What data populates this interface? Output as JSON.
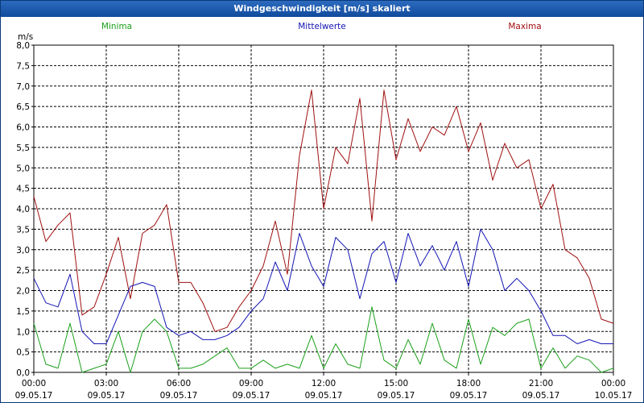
{
  "window": {
    "title": "Windgeschwindigkeit [m/s] skaliert"
  },
  "legend": [
    {
      "label": "Minima",
      "color": "#1aa01a"
    },
    {
      "label": "Mittelwerte",
      "color": "#1414b4"
    },
    {
      "label": "Maxima",
      "color": "#a01010"
    }
  ],
  "chart_data": {
    "type": "line",
    "title": "Windgeschwindigkeit [m/s] skaliert",
    "ylabel": "m/s",
    "ylim": [
      0,
      8
    ],
    "xlim": [
      "09.05.17 00:00",
      "10.05.17 00:00"
    ],
    "yticks": [
      "0,0",
      "0,5",
      "1,0",
      "1,5",
      "2,0",
      "2,5",
      "3,0",
      "3,5",
      "4,0",
      "4,5",
      "5,0",
      "5,5",
      "6,0",
      "6,5",
      "7,0",
      "7,5",
      "8,0"
    ],
    "xticks": [
      {
        "time": "00:00",
        "date": "09.05.17"
      },
      {
        "time": "03:00",
        "date": "09.05.17"
      },
      {
        "time": "06:00",
        "date": "09.05.17"
      },
      {
        "time": "09:00",
        "date": "09.05.17"
      },
      {
        "time": "12:00",
        "date": "09.05.17"
      },
      {
        "time": "15:00",
        "date": "09.05.17"
      },
      {
        "time": "18:00",
        "date": "09.05.17"
      },
      {
        "time": "21:00",
        "date": "09.05.17"
      },
      {
        "time": "00:00",
        "date": "10.05.17"
      }
    ],
    "grid": true,
    "legend_position": "top",
    "x_hours": [
      0,
      0.5,
      1,
      1.5,
      2,
      2.5,
      3,
      3.5,
      4,
      4.5,
      5,
      5.5,
      6,
      6.5,
      7,
      7.5,
      8,
      8.5,
      9,
      9.5,
      10,
      10.5,
      11,
      11.5,
      12,
      12.5,
      13,
      13.5,
      14,
      14.5,
      15,
      15.5,
      16,
      16.5,
      17,
      17.5,
      18,
      18.5,
      19,
      19.5,
      20,
      20.5,
      21,
      21.5,
      22,
      22.5,
      23,
      23.5,
      24
    ],
    "series": [
      {
        "name": "Maxima",
        "values": [
          4.3,
          3.2,
          3.6,
          3.9,
          1.4,
          1.6,
          2.4,
          3.3,
          1.8,
          3.4,
          3.6,
          4.1,
          2.2,
          2.2,
          1.7,
          1.0,
          1.1,
          1.6,
          2.0,
          2.6,
          3.7,
          2.4,
          5.3,
          6.9,
          4.0,
          5.5,
          5.1,
          6.7,
          3.7,
          6.9,
          5.2,
          6.2,
          5.4,
          6.0,
          5.8,
          6.5,
          5.4,
          6.1,
          4.7,
          5.6,
          5.0,
          5.2,
          4.0,
          4.6,
          3.0,
          2.8,
          2.3,
          1.3,
          1.2
        ]
      },
      {
        "name": "Mittelwerte",
        "values": [
          2.3,
          1.7,
          1.6,
          2.4,
          1.0,
          0.7,
          0.7,
          1.4,
          2.1,
          2.2,
          2.1,
          1.1,
          0.9,
          1.0,
          0.8,
          0.8,
          0.9,
          1.1,
          1.5,
          1.8,
          2.7,
          2.0,
          3.4,
          2.6,
          2.1,
          3.3,
          3.0,
          1.8,
          2.9,
          3.2,
          2.2,
          3.4,
          2.6,
          3.1,
          2.5,
          3.2,
          2.1,
          3.5,
          3.0,
          2.0,
          2.3,
          2.0,
          1.5,
          0.9,
          0.9,
          0.7,
          0.8,
          0.7,
          0.7
        ]
      },
      {
        "name": "Minima",
        "values": [
          1.2,
          0.2,
          0.1,
          1.2,
          0.0,
          0.1,
          0.2,
          1.0,
          0.0,
          1.0,
          1.3,
          1.0,
          0.1,
          0.1,
          0.2,
          0.4,
          0.6,
          0.1,
          0.1,
          0.3,
          0.1,
          0.2,
          0.1,
          0.9,
          0.1,
          0.7,
          0.2,
          0.1,
          1.6,
          0.3,
          0.1,
          0.8,
          0.2,
          1.2,
          0.3,
          0.1,
          1.3,
          0.2,
          1.1,
          0.9,
          1.2,
          1.3,
          0.1,
          0.6,
          0.1,
          0.4,
          0.3,
          0.0,
          0.1
        ]
      }
    ]
  }
}
